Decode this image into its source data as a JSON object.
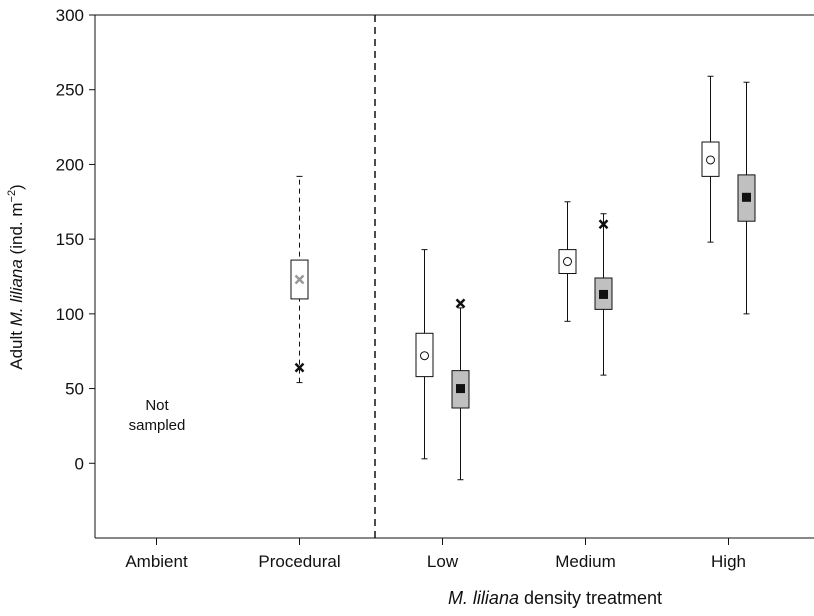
{
  "chart_data": {
    "type": "box",
    "y_label": {
      "start": "Adult ",
      "italic": "M. liliana",
      "unit": " (ind. m",
      "sup": "−2",
      "end": ")"
    },
    "x_label": {
      "italic": "M. liliana",
      "rest": " density treatment"
    },
    "annotation": "Not sampled",
    "categories": [
      "Ambient",
      "Procedural",
      "Low",
      "Medium",
      "High"
    ],
    "ylim": [
      -50,
      300
    ],
    "yticks": [
      0,
      50,
      100,
      150,
      200,
      250,
      300
    ],
    "grid": false,
    "series": [
      {
        "color": "#ffffff",
        "marker": "x",
        "marker_color": "#999999",
        "whisker_style": "dashed",
        "whisker_low": [
          null,
          54,
          null,
          null,
          null
        ],
        "q1": [
          null,
          110,
          null,
          null,
          null
        ],
        "center": [
          null,
          123,
          null,
          null,
          null
        ],
        "q3": [
          null,
          136,
          null,
          null,
          null
        ],
        "whisker_high": [
          null,
          192,
          null,
          null,
          null
        ],
        "outlier": [
          null,
          64,
          null,
          null,
          null
        ]
      },
      {
        "color": "#ffffff",
        "marker": "circle",
        "marker_color": "#ffffff",
        "whisker_style": "solid",
        "whisker_low": [
          null,
          null,
          3,
          95,
          148
        ],
        "q1": [
          null,
          null,
          58,
          127,
          192
        ],
        "center": [
          null,
          null,
          72,
          135,
          203
        ],
        "q3": [
          null,
          null,
          87,
          143,
          215
        ],
        "whisker_high": [
          null,
          null,
          143,
          175,
          259
        ],
        "outlier": [
          null,
          null,
          null,
          null,
          null
        ]
      },
      {
        "color": "#c0c0c0",
        "marker": "square",
        "marker_color": "#111111",
        "whisker_style": "solid",
        "whisker_low": [
          null,
          null,
          -11,
          59,
          100
        ],
        "q1": [
          null,
          null,
          37,
          103,
          162
        ],
        "center": [
          null,
          null,
          50,
          113,
          178
        ],
        "q3": [
          null,
          null,
          62,
          124,
          193
        ],
        "whisker_high": [
          null,
          null,
          104,
          167,
          255
        ],
        "outlier": [
          null,
          null,
          107,
          160,
          null
        ]
      }
    ]
  }
}
